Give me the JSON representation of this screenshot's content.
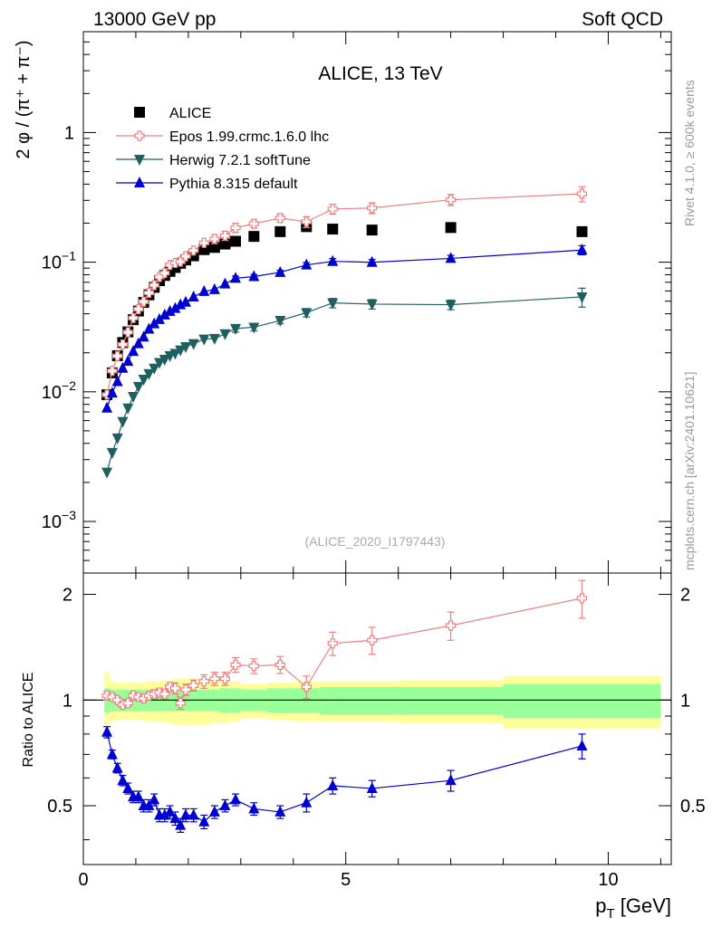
{
  "header": {
    "left": "13000 GeV pp",
    "right": "Soft QCD"
  },
  "side_labels": {
    "top": "Rivet 4.1.0, ≥ 600k events",
    "bottom": "mcplots.cern.ch [arXiv:2401.10621]"
  },
  "colors": {
    "data": "#000000",
    "epos": "#f08080",
    "herwig": "#1f5f5f",
    "pythia": "#0000d0",
    "band_inner": "#99ff99",
    "band_outer": "#ffff99"
  },
  "chart_data": [
    {
      "type": "scatter",
      "title": "ALICE, 13 TeV",
      "analysis_id": "(ALICE_2020_I1797443)",
      "ylabel": "2 φ / (π⁺ + π⁻)",
      "yscale": "log",
      "ylim": [
        0.0004,
        6
      ],
      "xlim": [
        0,
        11.2
      ],
      "y_ticks": [
        {
          "value": 0.001,
          "base": "10",
          "exp": "−3"
        },
        {
          "value": 0.01,
          "base": "10",
          "exp": "−2"
        },
        {
          "value": 0.1,
          "base": "10",
          "exp": "−1"
        },
        {
          "value": 1,
          "base": "1",
          "exp": ""
        }
      ],
      "legend_position": "top-left",
      "series": [
        {
          "name": "ALICE",
          "key": "data",
          "marker": "square",
          "x": [
            0.45,
            0.55,
            0.65,
            0.75,
            0.85,
            0.95,
            1.05,
            1.15,
            1.25,
            1.35,
            1.45,
            1.55,
            1.65,
            1.75,
            1.85,
            1.95,
            2.1,
            2.3,
            2.5,
            2.7,
            2.9,
            3.25,
            3.75,
            4.25,
            4.75,
            5.5,
            7.0,
            9.5
          ],
          "y": [
            0.0095,
            0.014,
            0.019,
            0.024,
            0.029,
            0.036,
            0.042,
            0.049,
            0.056,
            0.064,
            0.072,
            0.079,
            0.085,
            0.091,
            0.098,
            0.104,
            0.112,
            0.125,
            0.13,
            0.138,
            0.145,
            0.158,
            0.172,
            0.188,
            0.18,
            0.177,
            0.185,
            0.172
          ]
        },
        {
          "name": "Epos 1.99.crmc.1.6.0 lhc",
          "key": "epos",
          "marker": "open-cross",
          "x": [
            0.45,
            0.55,
            0.65,
            0.75,
            0.85,
            0.95,
            1.05,
            1.15,
            1.25,
            1.35,
            1.45,
            1.55,
            1.65,
            1.75,
            1.85,
            1.95,
            2.1,
            2.3,
            2.5,
            2.7,
            2.9,
            3.25,
            3.75,
            4.25,
            4.75,
            5.5,
            7.0,
            9.5
          ],
          "y": [
            0.0095,
            0.0145,
            0.0189,
            0.0232,
            0.0288,
            0.0371,
            0.0434,
            0.0496,
            0.058,
            0.0665,
            0.0769,
            0.0824,
            0.0952,
            0.0987,
            0.101,
            0.111,
            0.123,
            0.141,
            0.151,
            0.16,
            0.184,
            0.198,
            0.219,
            0.205,
            0.257,
            0.262,
            0.303,
            0.337
          ],
          "err": [
            0,
            0,
            0,
            0,
            0,
            0,
            0,
            0,
            0,
            0,
            0,
            0,
            0,
            0,
            0,
            0,
            0,
            0,
            0.012,
            0.013,
            0.015,
            0.014,
            0.016,
            0.02,
            0.022,
            0.025,
            0.03,
            0.045
          ]
        },
        {
          "name": "Herwig 7.2.1 softTune",
          "key": "herwig",
          "marker": "triangle-down",
          "x": [
            0.45,
            0.55,
            0.65,
            0.75,
            0.85,
            0.95,
            1.05,
            1.15,
            1.25,
            1.35,
            1.45,
            1.55,
            1.65,
            1.75,
            1.85,
            1.95,
            2.1,
            2.3,
            2.5,
            2.7,
            2.9,
            3.25,
            3.75,
            4.25,
            4.75,
            5.5,
            7.0,
            9.5
          ],
          "y": [
            0.0024,
            0.0034,
            0.0044,
            0.0059,
            0.0075,
            0.0092,
            0.011,
            0.0125,
            0.0138,
            0.0152,
            0.0168,
            0.0178,
            0.019,
            0.0198,
            0.021,
            0.0223,
            0.0235,
            0.0255,
            0.0258,
            0.028,
            0.0308,
            0.0315,
            0.0355,
            0.0408,
            0.0485,
            0.0475,
            0.047,
            0.054
          ],
          "err": [
            0,
            0,
            0,
            0,
            0,
            0,
            0,
            0,
            0,
            0,
            0,
            0,
            0,
            0,
            0,
            0,
            0,
            0,
            0,
            0,
            0.002,
            0.002,
            0.002,
            0.003,
            0.004,
            0.004,
            0.004,
            0.009
          ]
        },
        {
          "name": "Pythia 8.315 default",
          "key": "pythia",
          "marker": "triangle-up",
          "x": [
            0.45,
            0.55,
            0.65,
            0.75,
            0.85,
            0.95,
            1.05,
            1.15,
            1.25,
            1.35,
            1.45,
            1.55,
            1.65,
            1.75,
            1.85,
            1.95,
            2.1,
            2.3,
            2.5,
            2.7,
            2.9,
            3.25,
            3.75,
            4.25,
            4.75,
            5.5,
            7.0,
            9.5
          ],
          "y": [
            0.0075,
            0.0098,
            0.012,
            0.0152,
            0.0172,
            0.0205,
            0.0235,
            0.0265,
            0.0305,
            0.0335,
            0.0362,
            0.0392,
            0.0418,
            0.044,
            0.047,
            0.0492,
            0.054,
            0.0595,
            0.0615,
            0.068,
            0.0752,
            0.0775,
            0.0835,
            0.0952,
            0.1015,
            0.0998,
            0.107,
            0.124
          ],
          "err": [
            0,
            0,
            0,
            0,
            0,
            0,
            0,
            0,
            0,
            0,
            0,
            0,
            0,
            0,
            0,
            0,
            0,
            0,
            0,
            0,
            0.003,
            0.003,
            0.003,
            0.004,
            0.005,
            0.005,
            0.006,
            0.01
          ]
        }
      ]
    },
    {
      "type": "line",
      "ylabel": "Ratio to ALICE",
      "xlabel": "p_T [GeV]",
      "xlim": [
        0,
        11.2
      ],
      "ylim": [
        0.34,
        2.3
      ],
      "x_ticks": [
        0,
        5,
        10
      ],
      "y_ticks": [
        0.5,
        1,
        2
      ],
      "reference_line": 1,
      "bands": {
        "edges": [
          0.4,
          0.5,
          0.6,
          0.7,
          0.8,
          0.9,
          1.0,
          1.1,
          1.2,
          1.3,
          1.4,
          1.5,
          1.6,
          1.7,
          1.8,
          1.9,
          2.0,
          2.2,
          2.4,
          2.6,
          2.8,
          3.0,
          3.5,
          4.0,
          4.5,
          5.0,
          6.0,
          8.0,
          11.0
        ],
        "inner": [
          0.08,
          0.07,
          0.07,
          0.07,
          0.07,
          0.07,
          0.07,
          0.07,
          0.07,
          0.07,
          0.07,
          0.07,
          0.07,
          0.07,
          0.07,
          0.07,
          0.07,
          0.07,
          0.07,
          0.08,
          0.08,
          0.07,
          0.08,
          0.08,
          0.09,
          0.09,
          0.09,
          0.11
        ],
        "outer": [
          0.2,
          0.13,
          0.12,
          0.12,
          0.12,
          0.12,
          0.12,
          0.12,
          0.13,
          0.13,
          0.13,
          0.14,
          0.14,
          0.15,
          0.15,
          0.15,
          0.15,
          0.15,
          0.14,
          0.14,
          0.13,
          0.11,
          0.12,
          0.13,
          0.13,
          0.13,
          0.14,
          0.17
        ]
      },
      "series": [
        {
          "name": "Epos 1.99.crmc.1.6.0 lhc",
          "key": "epos",
          "marker": "open-cross",
          "x": [
            0.45,
            0.55,
            0.65,
            0.75,
            0.85,
            0.95,
            1.05,
            1.15,
            1.25,
            1.35,
            1.45,
            1.55,
            1.65,
            1.75,
            1.85,
            1.95,
            2.1,
            2.3,
            2.5,
            2.7,
            2.9,
            3.25,
            3.75,
            4.25,
            4.75,
            5.5,
            7.0,
            9.5
          ],
          "y": [
            1.03,
            1.02,
            1.0,
            0.97,
            0.98,
            1.03,
            1.02,
            1.01,
            1.03,
            1.04,
            1.05,
            1.04,
            1.09,
            1.08,
            0.98,
            1.07,
            1.1,
            1.13,
            1.15,
            1.15,
            1.26,
            1.25,
            1.26,
            1.09,
            1.45,
            1.48,
            1.63,
            1.95
          ],
          "err": [
            0.03,
            0.02,
            0.02,
            0.02,
            0.02,
            0.02,
            0.02,
            0.02,
            0.02,
            0.03,
            0.03,
            0.03,
            0.03,
            0.04,
            0.04,
            0.04,
            0.04,
            0.05,
            0.05,
            0.05,
            0.06,
            0.06,
            0.07,
            0.08,
            0.11,
            0.13,
            0.15,
            0.24
          ]
        },
        {
          "name": "Pythia 8.315 default",
          "key": "pythia",
          "marker": "triangle-up",
          "x": [
            0.45,
            0.55,
            0.65,
            0.75,
            0.85,
            0.95,
            1.05,
            1.15,
            1.25,
            1.35,
            1.45,
            1.55,
            1.65,
            1.75,
            1.85,
            1.95,
            2.1,
            2.3,
            2.5,
            2.7,
            2.9,
            3.25,
            3.75,
            4.25,
            4.75,
            5.5,
            7.0,
            9.5
          ],
          "y": [
            0.81,
            0.7,
            0.64,
            0.59,
            0.56,
            0.53,
            0.53,
            0.5,
            0.5,
            0.52,
            0.47,
            0.47,
            0.48,
            0.46,
            0.44,
            0.47,
            0.47,
            0.45,
            0.48,
            0.5,
            0.52,
            0.49,
            0.48,
            0.51,
            0.57,
            0.56,
            0.59,
            0.74
          ],
          "err": [
            0.03,
            0.02,
            0.02,
            0.02,
            0.02,
            0.02,
            0.02,
            0.02,
            0.02,
            0.02,
            0.02,
            0.02,
            0.02,
            0.02,
            0.02,
            0.02,
            0.02,
            0.02,
            0.02,
            0.02,
            0.02,
            0.02,
            0.02,
            0.03,
            0.03,
            0.03,
            0.04,
            0.06
          ]
        }
      ]
    }
  ]
}
